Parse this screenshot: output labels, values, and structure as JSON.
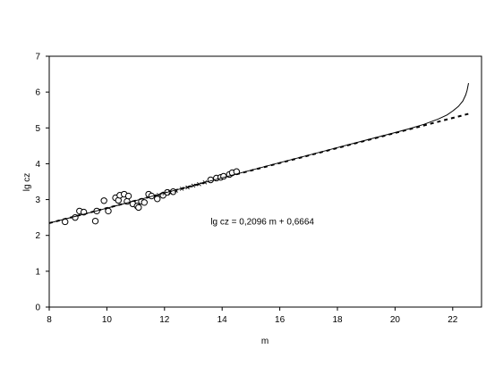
{
  "chart_data": {
    "type": "scatter",
    "xlabel": "m",
    "ylabel": "lg cz",
    "xlim": [
      8,
      23.0
    ],
    "ylim": [
      0,
      7
    ],
    "xticks": [
      8,
      10,
      12,
      14,
      16,
      18,
      20,
      22
    ],
    "yticks": [
      0,
      1,
      2,
      3,
      4,
      5,
      6,
      7
    ],
    "annotation": {
      "text": "lg cz = 0,2096 m + 0,6664",
      "x": 13.6,
      "y": 2.38
    },
    "fit": {
      "slope": 0.2096,
      "intercept": 0.6664
    },
    "series": [
      {
        "kind": "circles",
        "points": [
          [
            8.55,
            2.38
          ],
          [
            8.9,
            2.5
          ],
          [
            9.05,
            2.68
          ],
          [
            9.2,
            2.65
          ],
          [
            9.6,
            2.4
          ],
          [
            9.65,
            2.68
          ],
          [
            9.9,
            2.97
          ],
          [
            10.05,
            2.68
          ],
          [
            10.3,
            3.05
          ],
          [
            10.4,
            2.98
          ],
          [
            10.45,
            3.12
          ],
          [
            10.6,
            3.15
          ],
          [
            10.7,
            2.95
          ],
          [
            10.75,
            3.1
          ],
          [
            10.9,
            2.88
          ],
          [
            11.05,
            2.82
          ],
          [
            11.1,
            2.78
          ],
          [
            11.2,
            2.95
          ],
          [
            11.3,
            2.92
          ],
          [
            11.45,
            3.15
          ],
          [
            11.55,
            3.1
          ],
          [
            11.75,
            3.02
          ],
          [
            11.95,
            3.12
          ],
          [
            12.1,
            3.2
          ],
          [
            12.3,
            3.22
          ],
          [
            13.6,
            3.55
          ],
          [
            13.8,
            3.6
          ],
          [
            13.95,
            3.62
          ],
          [
            14.05,
            3.65
          ],
          [
            14.25,
            3.7
          ],
          [
            14.35,
            3.75
          ],
          [
            14.5,
            3.78
          ]
        ]
      },
      {
        "kind": "crosses",
        "points": [
          [
            11.8,
            3.13
          ],
          [
            12.0,
            3.17
          ],
          [
            12.2,
            3.2
          ],
          [
            12.4,
            3.25
          ],
          [
            12.6,
            3.3
          ],
          [
            12.8,
            3.34
          ],
          [
            13.0,
            3.39
          ],
          [
            13.2,
            3.43
          ],
          [
            13.4,
            3.48
          ]
        ]
      },
      {
        "kind": "curve",
        "points": [
          [
            8.0,
            2.345
          ],
          [
            9.0,
            2.552
          ],
          [
            10.0,
            2.76
          ],
          [
            11.0,
            2.972
          ],
          [
            12.0,
            3.183
          ],
          [
            13.0,
            3.394
          ],
          [
            14.0,
            3.606
          ],
          [
            15.0,
            3.818
          ],
          [
            16.0,
            4.03
          ],
          [
            17.0,
            4.24
          ],
          [
            18.0,
            4.452
          ],
          [
            19.0,
            4.66
          ],
          [
            20.0,
            4.87
          ],
          [
            20.5,
            4.98
          ],
          [
            21.0,
            5.1
          ],
          [
            21.5,
            5.25
          ],
          [
            21.8,
            5.36
          ],
          [
            22.0,
            5.47
          ],
          [
            22.2,
            5.6
          ],
          [
            22.35,
            5.75
          ],
          [
            22.45,
            5.92
          ],
          [
            22.5,
            6.05
          ],
          [
            22.55,
            6.25
          ]
        ]
      }
    ]
  }
}
